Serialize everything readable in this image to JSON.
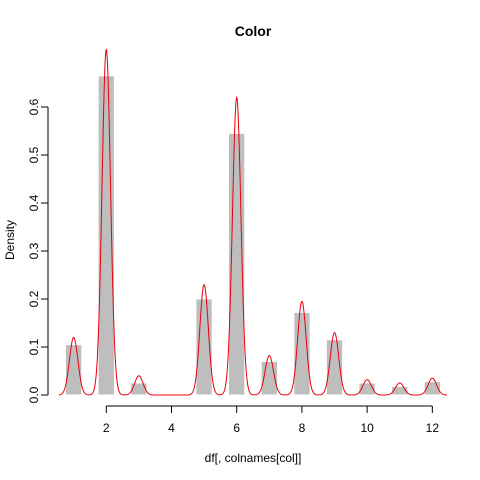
{
  "chart_data": {
    "type": "bar",
    "title": "Color",
    "xlabel": "df[, colnames[col]]",
    "ylabel": "Density",
    "xlim": [
      0.55,
      12.45
    ],
    "ylim": [
      0,
      0.7
    ],
    "x_ticks": [
      2,
      4,
      6,
      8,
      10,
      12
    ],
    "y_ticks": [
      0.0,
      0.1,
      0.2,
      0.3,
      0.4,
      0.5,
      0.6
    ],
    "y_tick_labels": [
      "0.0",
      "0.1",
      "0.2",
      "0.3",
      "0.4",
      "0.5",
      "0.6"
    ],
    "bars": [
      {
        "x0": 0.75,
        "x1": 1.25,
        "value": 0.105
      },
      {
        "x0": 1.25,
        "x1": 1.75,
        "value": 0.0
      },
      {
        "x0": 1.75,
        "x1": 2.25,
        "value": 0.665
      },
      {
        "x0": 2.75,
        "x1": 3.25,
        "value": 0.025
      },
      {
        "x0": 4.75,
        "x1": 5.25,
        "value": 0.2
      },
      {
        "x0": 5.75,
        "x1": 6.25,
        "value": 0.545
      },
      {
        "x0": 6.75,
        "x1": 7.25,
        "value": 0.07
      },
      {
        "x0": 7.75,
        "x1": 8.25,
        "value": 0.172
      },
      {
        "x0": 8.75,
        "x1": 9.25,
        "value": 0.115
      },
      {
        "x0": 9.75,
        "x1": 10.25,
        "value": 0.025
      },
      {
        "x0": 10.75,
        "x1": 11.25,
        "value": 0.018
      },
      {
        "x0": 11.75,
        "x1": 12.25,
        "value": 0.028
      }
    ],
    "density_peaks": [
      {
        "x": 1,
        "y": 0.12
      },
      {
        "x": 2,
        "y": 0.72
      },
      {
        "x": 3,
        "y": 0.04
      },
      {
        "x": 5,
        "y": 0.23
      },
      {
        "x": 6,
        "y": 0.62
      },
      {
        "x": 7,
        "y": 0.082
      },
      {
        "x": 8,
        "y": 0.195
      },
      {
        "x": 9,
        "y": 0.13
      },
      {
        "x": 10,
        "y": 0.032
      },
      {
        "x": 11,
        "y": 0.025
      },
      {
        "x": 12,
        "y": 0.035
      }
    ],
    "density_range": [
      0.55,
      12.45
    ],
    "bar_color": "#bebebe",
    "density_color": "#e8000b"
  }
}
